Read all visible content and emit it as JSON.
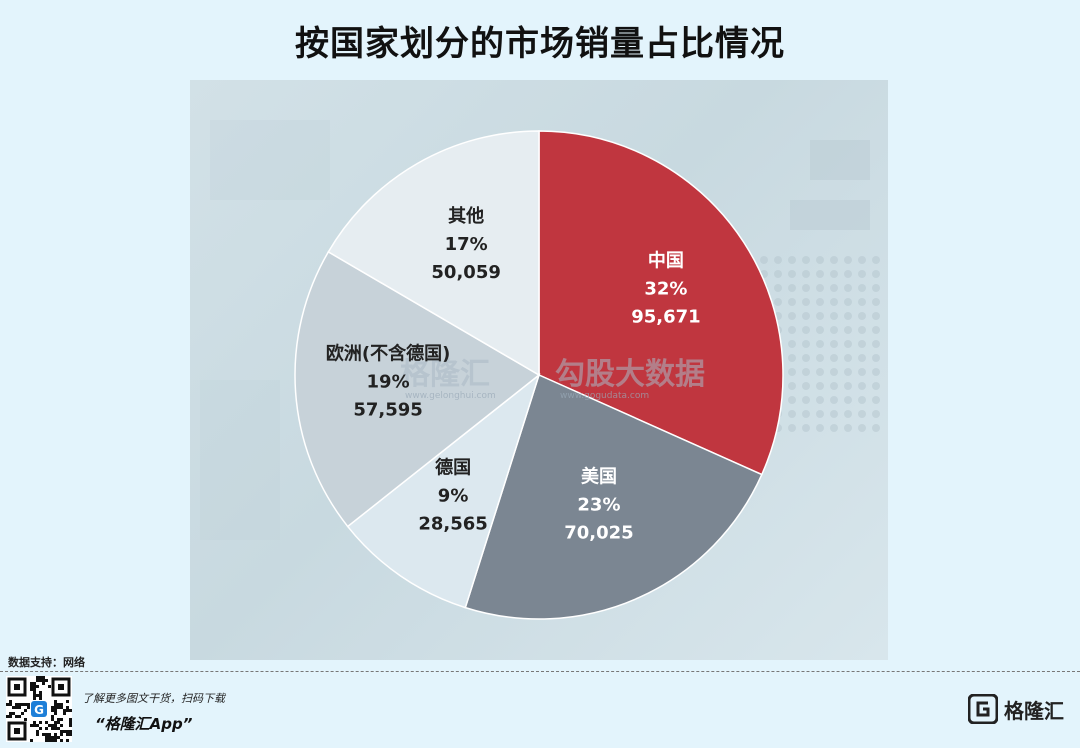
{
  "title": "按国家划分的市场销量占比情况",
  "chart_data": {
    "type": "pie",
    "title": "按国家划分的市场销量占比情况",
    "slices": [
      {
        "name": "中国",
        "percent_label": "32%",
        "value_label": "95,671",
        "value": 95671,
        "color": "#c0363f"
      },
      {
        "name": "美国",
        "percent_label": "23%",
        "value_label": "70,025",
        "value": 70025,
        "color": "#7b8692"
      },
      {
        "name": "德国",
        "percent_label": "9%",
        "value_label": "28,565",
        "value": 28565,
        "color": "#dce8ef"
      },
      {
        "name": "欧洲(不含德国)",
        "percent_label": "19%",
        "value_label": "57,595",
        "value": 57595,
        "color": "#c7d2d9"
      },
      {
        "name": "其他",
        "percent_label": "17%",
        "value_label": "50,059",
        "value": 50059,
        "color": "#e6edf1"
      }
    ],
    "start_angle": "12 o'clock",
    "direction": "clockwise"
  },
  "watermark": {
    "brand1": "格隆汇",
    "brand2": "勾股大数据",
    "url1": "www.gelonghui.com",
    "url2": "www.gogudata.com"
  },
  "footer": {
    "source": "数据支持：网络",
    "promo_line1": "了解更多图文干货，扫码下载",
    "promo_line2": "“格隆汇App”",
    "brand_logo_text": "格隆汇",
    "brand_logo_icon": "g-logo-icon",
    "qr_icon": "qr-code-icon"
  }
}
